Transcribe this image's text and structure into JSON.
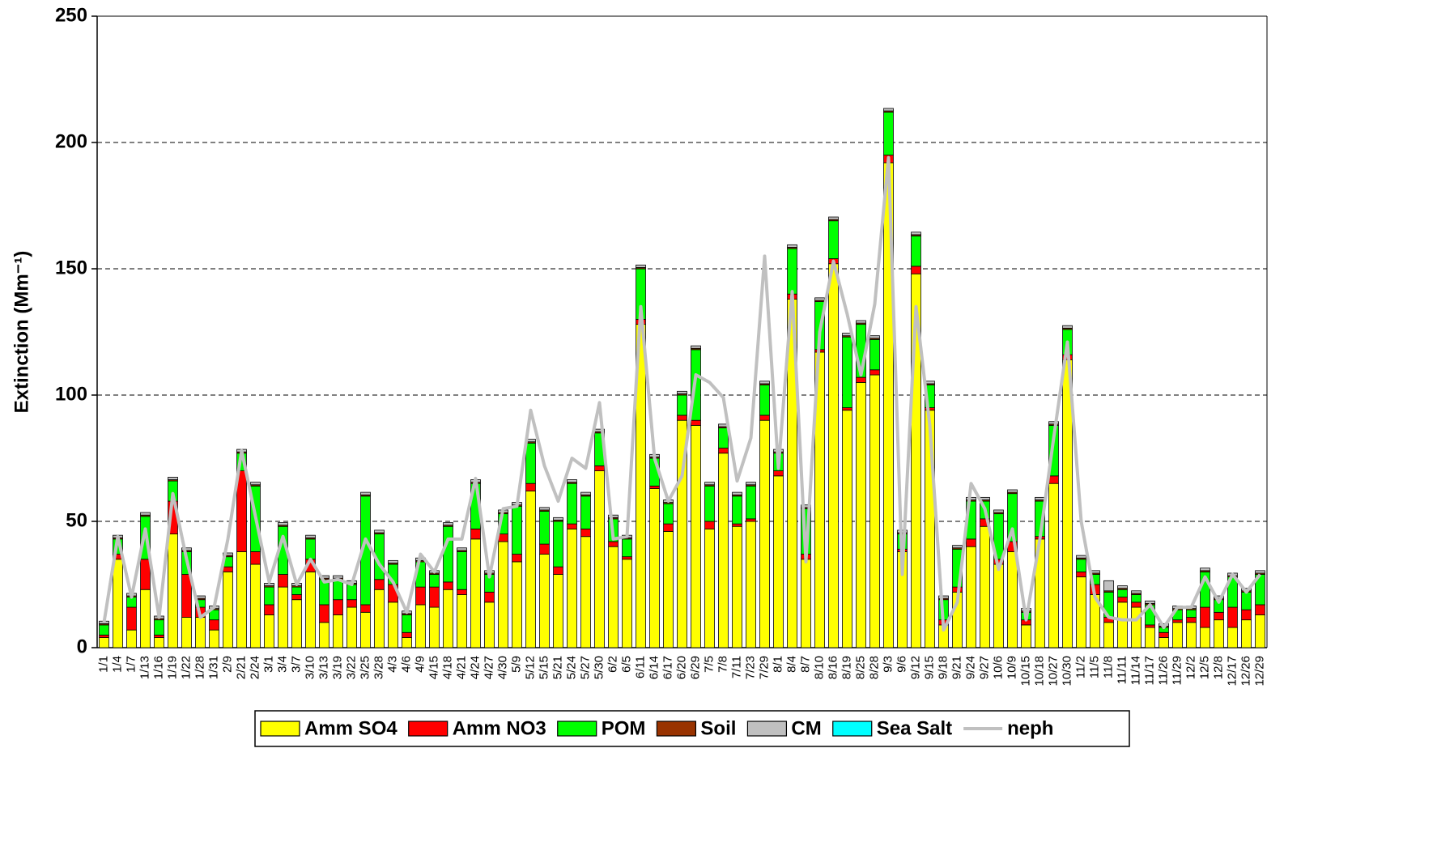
{
  "chart_data": {
    "type": "stacked_bar_line",
    "y_label": "Extinction (Mm⁻¹)",
    "categories": [
      "1/1",
      "1/4",
      "1/7",
      "1/13",
      "1/16",
      "1/19",
      "1/22",
      "1/28",
      "1/31",
      "2/9",
      "2/21",
      "2/24",
      "3/1",
      "3/4",
      "3/7",
      "3/10",
      "3/13",
      "3/19",
      "3/22",
      "3/25",
      "3/28",
      "4/3",
      "4/6",
      "4/9",
      "4/15",
      "4/18",
      "4/21",
      "4/24",
      "4/27",
      "4/30",
      "5/9",
      "5/12",
      "5/15",
      "5/21",
      "5/24",
      "5/27",
      "5/30",
      "6/2",
      "6/5",
      "6/11",
      "6/14",
      "6/17",
      "6/20",
      "6/29",
      "7/5",
      "7/8",
      "7/11",
      "7/23",
      "7/29",
      "8/1",
      "8/4",
      "8/7",
      "8/10",
      "8/16",
      "8/19",
      "8/25",
      "8/28",
      "9/3",
      "9/6",
      "9/12",
      "9/15",
      "9/18",
      "9/21",
      "9/24",
      "9/27",
      "10/6",
      "10/9",
      "10/15",
      "10/18",
      "10/27",
      "10/30",
      "11/2",
      "11/5",
      "11/8",
      "11/11",
      "11/14",
      "11/17",
      "11/26",
      "11/29",
      "12/2",
      "12/5",
      "12/8",
      "12/17",
      "12/26",
      "12/29"
    ],
    "series": [
      {
        "name": "Amm SO4",
        "color": "#ffff00",
        "values": [
          4,
          35,
          7,
          23,
          4,
          45,
          12,
          12,
          7,
          30,
          38,
          33,
          13,
          24,
          19,
          30,
          10,
          13,
          16,
          14,
          23,
          18,
          4,
          17,
          16,
          23,
          21,
          43,
          18,
          42,
          34,
          62,
          37,
          29,
          47,
          44,
          70,
          40,
          35,
          128,
          63,
          46,
          90,
          88,
          47,
          77,
          48,
          50,
          90,
          68,
          138,
          35,
          117,
          152,
          94,
          105,
          108,
          192,
          38,
          148,
          94,
          9,
          22,
          40,
          48,
          33,
          38,
          9,
          43,
          65,
          114,
          28,
          21,
          10,
          18,
          16,
          8,
          4,
          10,
          10,
          8,
          11,
          8,
          11,
          13
        ]
      },
      {
        "name": "Amm NO3",
        "color": "#ff0000",
        "values": [
          1,
          2,
          9,
          12,
          1,
          13,
          17,
          4,
          4,
          2,
          32,
          5,
          4,
          5,
          2,
          5,
          7,
          6,
          3,
          3,
          4,
          7,
          2,
          7,
          8,
          3,
          2,
          4,
          4,
          3,
          3,
          3,
          4,
          3,
          2,
          3,
          2,
          2,
          1,
          2,
          1,
          3,
          2,
          2,
          3,
          2,
          1,
          1,
          2,
          2,
          2,
          2,
          1,
          2,
          1,
          2,
          2,
          3,
          1,
          3,
          1,
          2,
          2,
          3,
          3,
          2,
          4,
          2,
          1,
          3,
          2,
          2,
          4,
          2,
          2,
          2,
          1,
          2,
          1,
          2,
          8,
          3,
          8,
          4,
          4
        ]
      },
      {
        "name": "POM",
        "color": "#00ff00",
        "values": [
          4,
          6,
          4,
          17,
          6,
          8,
          9,
          3,
          4,
          4,
          7,
          26,
          7,
          19,
          3,
          8,
          10,
          8,
          6,
          43,
          18,
          8,
          7,
          10,
          5,
          22,
          15,
          18,
          7,
          8,
          19,
          16,
          13,
          18,
          16,
          13,
          13,
          9,
          7,
          20,
          11,
          8,
          8,
          28,
          14,
          8,
          11,
          13,
          12,
          7,
          18,
          18,
          19,
          15,
          28,
          21,
          12,
          17,
          6,
          12,
          9,
          8,
          15,
          15,
          7,
          18,
          19,
          3,
          14,
          20,
          10,
          5,
          4,
          10,
          3,
          3,
          8,
          2,
          4,
          3,
          14,
          5,
          12,
          7,
          12
        ]
      },
      {
        "name": "Soil",
        "color": "#993300",
        "values": [
          0.5,
          0.5,
          0.5,
          0.5,
          0.5,
          0.5,
          0.5,
          0.5,
          0.5,
          0.5,
          0.5,
          0.5,
          0.5,
          0.5,
          0.5,
          0.5,
          0.5,
          0.5,
          0.5,
          0.5,
          0.5,
          0.5,
          0.5,
          0.5,
          0.5,
          0.5,
          0.5,
          0.5,
          0.5,
          0.5,
          0.5,
          0.5,
          0.5,
          0.5,
          0.5,
          0.5,
          0.5,
          0.5,
          0.5,
          0.5,
          0.5,
          0.5,
          0.5,
          0.5,
          0.5,
          0.5,
          0.5,
          0.5,
          0.5,
          0.5,
          0.5,
          0.5,
          0.5,
          0.5,
          0.5,
          0.5,
          0.5,
          0.5,
          0.5,
          0.5,
          0.5,
          0.5,
          0.5,
          0.5,
          0.5,
          0.5,
          0.5,
          0.5,
          0.5,
          0.5,
          0.5,
          0.5,
          0.5,
          0.5,
          0.5,
          0.5,
          0.5,
          0.5,
          0.5,
          0.5,
          0.5,
          0.5,
          0.5,
          0.5,
          0.5
        ]
      },
      {
        "name": "CM",
        "color": "#c0c0c0",
        "values": [
          1,
          1,
          1,
          1,
          1,
          1,
          1,
          1,
          1,
          1,
          1,
          1,
          1,
          1,
          1,
          1,
          1,
          1,
          1,
          1,
          1,
          1,
          1,
          1,
          1,
          1,
          1,
          1,
          1,
          1,
          1,
          1,
          1,
          1,
          1,
          1,
          1,
          1,
          1,
          1,
          1,
          1,
          1,
          1,
          1,
          1,
          1,
          1,
          1,
          1,
          1,
          1,
          1,
          1,
          1,
          1,
          1,
          1,
          1,
          1,
          1,
          1,
          1,
          1,
          1,
          1,
          1,
          1,
          1,
          1,
          1,
          1,
          1,
          4,
          1,
          1,
          1,
          1,
          1,
          1,
          1,
          1,
          1,
          1,
          1
        ]
      },
      {
        "name": "Sea Salt",
        "color": "#00ffff",
        "values": [
          0,
          0,
          0,
          0,
          0,
          0,
          0,
          0,
          0,
          0,
          0,
          0,
          0,
          0,
          0,
          0,
          0,
          0,
          0,
          0,
          0,
          0,
          0,
          0,
          0,
          0,
          0,
          0,
          0,
          0,
          0,
          0,
          0,
          0,
          0,
          0,
          0,
          0,
          0,
          0,
          0,
          0,
          0,
          0,
          0,
          0,
          0,
          0,
          0,
          0,
          0,
          0,
          0,
          0,
          0,
          0,
          0,
          0,
          0,
          0,
          0,
          0,
          0,
          0,
          0,
          0,
          0,
          0,
          0,
          0,
          0,
          0,
          0,
          0,
          0,
          0,
          0,
          0,
          0,
          0,
          0,
          0,
          0,
          0,
          0
        ]
      },
      {
        "name": "neph",
        "color": "#c0c0c0",
        "kind": "line",
        "values": [
          10,
          44,
          20,
          47,
          12,
          61,
          35,
          12,
          16,
          43,
          78,
          52,
          26,
          44,
          25,
          35,
          26,
          27,
          25,
          43,
          33,
          26,
          14,
          37,
          30,
          43,
          43,
          67,
          28,
          55,
          56,
          94,
          72,
          58,
          75,
          71,
          97,
          43,
          44,
          135,
          75,
          58,
          68,
          108,
          105,
          99,
          66,
          83,
          155,
          71,
          141,
          34,
          125,
          153,
          132,
          108,
          136,
          194,
          29,
          135,
          88,
          7,
          18,
          65,
          55,
          31,
          47,
          11,
          43,
          83,
          121,
          50,
          20,
          12,
          11,
          11,
          17,
          8,
          16,
          16,
          28,
          18,
          29,
          22,
          29
        ]
      }
    ],
    "ylim": [
      0,
      250
    ],
    "yticks": [
      0,
      50,
      100,
      150,
      200,
      250
    ],
    "grid": true,
    "legend": "bottom"
  }
}
